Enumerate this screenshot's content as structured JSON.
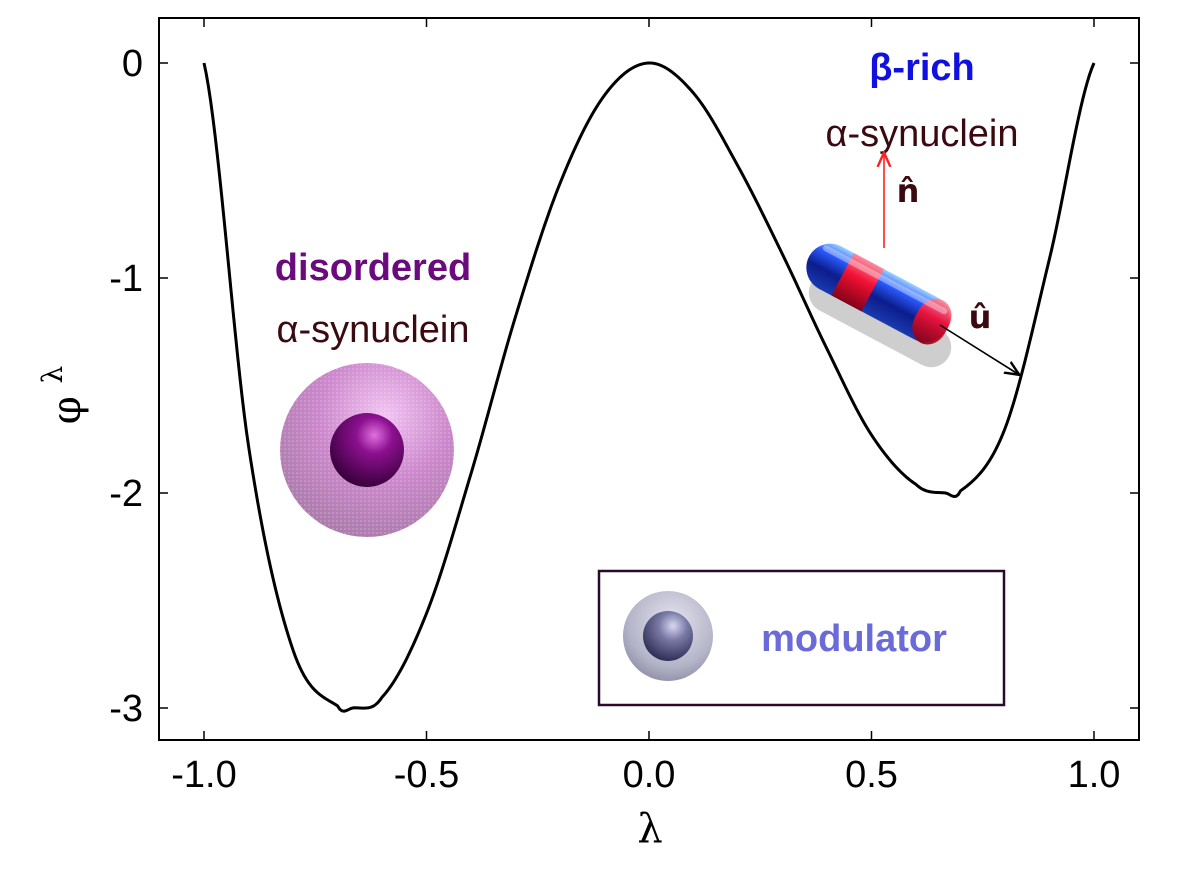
{
  "chart_data": {
    "type": "line",
    "xlabel": "λ",
    "ylabel": "φ",
    "ylabel_superscript": "λ",
    "xlim": [
      -1.0,
      1.0
    ],
    "ylim": [
      -3.0,
      0.0
    ],
    "x_ticks": [
      -1.0,
      -0.5,
      0.0,
      0.5,
      1.0
    ],
    "x_tick_labels": [
      "-1.0",
      "-0.5",
      "0.0",
      "0.5",
      "1.0"
    ],
    "y_ticks": [
      0,
      -1,
      -2,
      -3
    ],
    "y_tick_labels": [
      "0",
      "-1",
      "-2",
      "-3"
    ],
    "series": [
      {
        "x": [
          -1.0,
          -0.9,
          -0.8,
          -0.7,
          -0.667,
          -0.6,
          -0.5,
          -0.4,
          -0.3,
          -0.2,
          -0.1,
          0.0,
          0.1,
          0.2,
          0.3,
          0.4,
          0.5,
          0.6,
          0.667,
          0.7,
          0.8,
          0.9,
          1.0
        ],
        "y": [
          0.0,
          -1.78,
          -2.73,
          -2.99,
          -3.0,
          -2.95,
          -2.56,
          -1.91,
          -1.18,
          -0.56,
          -0.15,
          0.0,
          -0.14,
          -0.48,
          -0.89,
          -1.33,
          -1.73,
          -1.96,
          -2.0,
          -1.99,
          -1.7,
          -0.91,
          0.0
        ],
        "color": "#000000"
      }
    ],
    "grid": false
  },
  "annotations": {
    "disordered_title": "disordered",
    "disordered_subtitle": "α-synuclein",
    "beta_title": "β-rich",
    "beta_subtitle": "α-synuclein",
    "n_vector": "n̂",
    "u_vector": "û",
    "legend_label": "modulator"
  },
  "colors": {
    "disordered": "#6b0a7d",
    "beta_rich": "#1010e0",
    "subtitle": "#3a0a10",
    "modulator": "#6a6ad8",
    "legend_border": "#2a0a2a",
    "n_arrow": "#ff3030"
  }
}
